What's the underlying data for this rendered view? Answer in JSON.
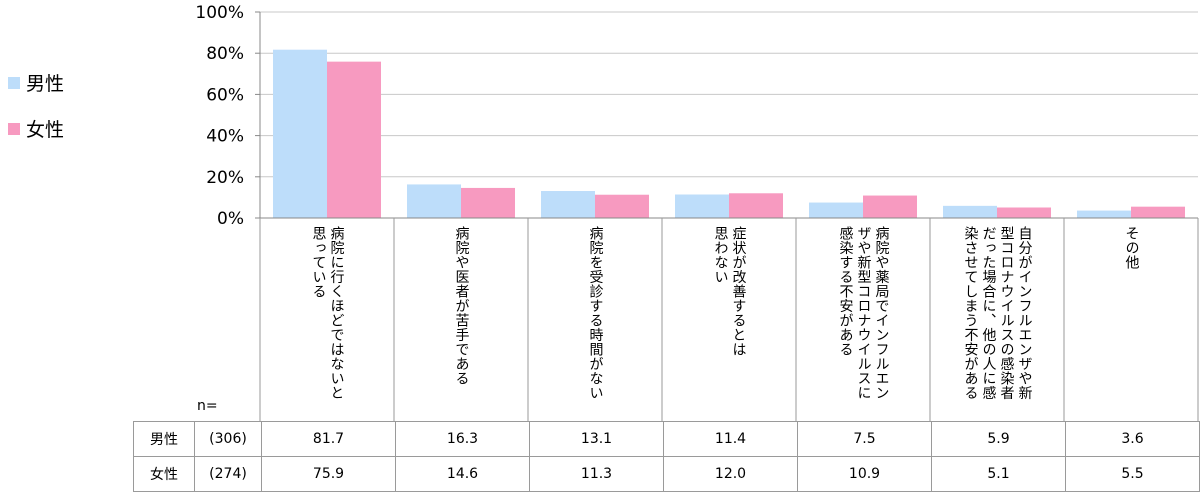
{
  "chart_data": {
    "type": "bar",
    "ylim": [
      0,
      100
    ],
    "yticks": [
      "0%",
      "20%",
      "40%",
      "60%",
      "80%",
      "100%"
    ],
    "categories": [
      [
        "病院に行くほどではないと",
        "思っている"
      ],
      [
        "病院や医者が苦手である"
      ],
      [
        "病院を受診する時間がない"
      ],
      [
        "症状が改善するとは",
        "思わない"
      ],
      [
        "病院や薬局でインフルエン",
        "ザや新型コロナウイルスに",
        "感染する不安がある"
      ],
      [
        "自分がインフルエンザや新",
        "型コロナウイルスの感染者",
        "だった場合に、他の人に感",
        "染させてしまう不安がある"
      ],
      [
        "その他"
      ]
    ],
    "series": [
      {
        "name": "男性",
        "n": "(306)",
        "color": "#BDDDFA",
        "values": [
          "81.7",
          "16.3",
          "13.1",
          "11.4",
          "7.5",
          "5.9",
          "3.6"
        ]
      },
      {
        "name": "女性",
        "n": "(274)",
        "color": "#F79AC0",
        "values": [
          "75.9",
          "14.6",
          "11.3",
          "12.0",
          "10.9",
          "5.1",
          "5.5"
        ]
      }
    ],
    "n_label": "n=",
    "grid": true,
    "legend": "left"
  }
}
